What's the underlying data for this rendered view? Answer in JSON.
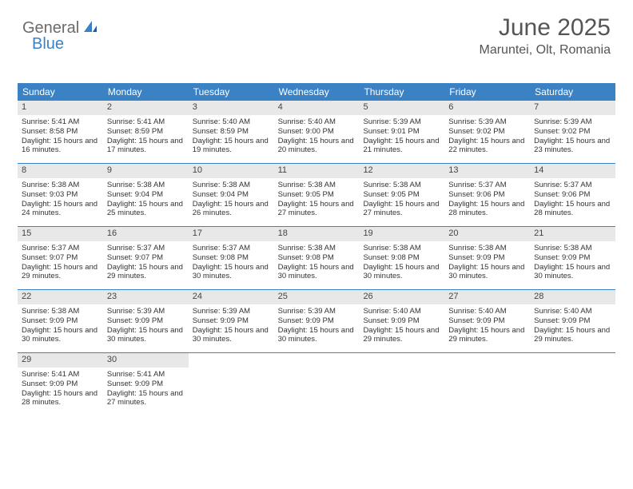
{
  "logo": {
    "text1": "General",
    "text2": "Blue"
  },
  "header": {
    "title": "June 2025",
    "location": "Maruntei, Olt, Romania"
  },
  "colors": {
    "header_bg": "#3b82c4",
    "header_text": "#ffffff",
    "daynum_bg": "#e8e8e8",
    "border": "#3b82c4",
    "body_text": "#333333",
    "logo_gray": "#6b6b6b",
    "logo_blue": "#3b82c4"
  },
  "calendar": {
    "day_names": [
      "Sunday",
      "Monday",
      "Tuesday",
      "Wednesday",
      "Thursday",
      "Friday",
      "Saturday"
    ],
    "weeks": [
      [
        {
          "n": "1",
          "sunrise": "5:41 AM",
          "sunset": "8:58 PM",
          "daylight": "15 hours and 16 minutes."
        },
        {
          "n": "2",
          "sunrise": "5:41 AM",
          "sunset": "8:59 PM",
          "daylight": "15 hours and 17 minutes."
        },
        {
          "n": "3",
          "sunrise": "5:40 AM",
          "sunset": "8:59 PM",
          "daylight": "15 hours and 19 minutes."
        },
        {
          "n": "4",
          "sunrise": "5:40 AM",
          "sunset": "9:00 PM",
          "daylight": "15 hours and 20 minutes."
        },
        {
          "n": "5",
          "sunrise": "5:39 AM",
          "sunset": "9:01 PM",
          "daylight": "15 hours and 21 minutes."
        },
        {
          "n": "6",
          "sunrise": "5:39 AM",
          "sunset": "9:02 PM",
          "daylight": "15 hours and 22 minutes."
        },
        {
          "n": "7",
          "sunrise": "5:39 AM",
          "sunset": "9:02 PM",
          "daylight": "15 hours and 23 minutes."
        }
      ],
      [
        {
          "n": "8",
          "sunrise": "5:38 AM",
          "sunset": "9:03 PM",
          "daylight": "15 hours and 24 minutes."
        },
        {
          "n": "9",
          "sunrise": "5:38 AM",
          "sunset": "9:04 PM",
          "daylight": "15 hours and 25 minutes."
        },
        {
          "n": "10",
          "sunrise": "5:38 AM",
          "sunset": "9:04 PM",
          "daylight": "15 hours and 26 minutes."
        },
        {
          "n": "11",
          "sunrise": "5:38 AM",
          "sunset": "9:05 PM",
          "daylight": "15 hours and 27 minutes."
        },
        {
          "n": "12",
          "sunrise": "5:38 AM",
          "sunset": "9:05 PM",
          "daylight": "15 hours and 27 minutes."
        },
        {
          "n": "13",
          "sunrise": "5:37 AM",
          "sunset": "9:06 PM",
          "daylight": "15 hours and 28 minutes."
        },
        {
          "n": "14",
          "sunrise": "5:37 AM",
          "sunset": "9:06 PM",
          "daylight": "15 hours and 28 minutes."
        }
      ],
      [
        {
          "n": "15",
          "sunrise": "5:37 AM",
          "sunset": "9:07 PM",
          "daylight": "15 hours and 29 minutes."
        },
        {
          "n": "16",
          "sunrise": "5:37 AM",
          "sunset": "9:07 PM",
          "daylight": "15 hours and 29 minutes."
        },
        {
          "n": "17",
          "sunrise": "5:37 AM",
          "sunset": "9:08 PM",
          "daylight": "15 hours and 30 minutes."
        },
        {
          "n": "18",
          "sunrise": "5:38 AM",
          "sunset": "9:08 PM",
          "daylight": "15 hours and 30 minutes."
        },
        {
          "n": "19",
          "sunrise": "5:38 AM",
          "sunset": "9:08 PM",
          "daylight": "15 hours and 30 minutes."
        },
        {
          "n": "20",
          "sunrise": "5:38 AM",
          "sunset": "9:09 PM",
          "daylight": "15 hours and 30 minutes."
        },
        {
          "n": "21",
          "sunrise": "5:38 AM",
          "sunset": "9:09 PM",
          "daylight": "15 hours and 30 minutes."
        }
      ],
      [
        {
          "n": "22",
          "sunrise": "5:38 AM",
          "sunset": "9:09 PM",
          "daylight": "15 hours and 30 minutes."
        },
        {
          "n": "23",
          "sunrise": "5:39 AM",
          "sunset": "9:09 PM",
          "daylight": "15 hours and 30 minutes."
        },
        {
          "n": "24",
          "sunrise": "5:39 AM",
          "sunset": "9:09 PM",
          "daylight": "15 hours and 30 minutes."
        },
        {
          "n": "25",
          "sunrise": "5:39 AM",
          "sunset": "9:09 PM",
          "daylight": "15 hours and 30 minutes."
        },
        {
          "n": "26",
          "sunrise": "5:40 AM",
          "sunset": "9:09 PM",
          "daylight": "15 hours and 29 minutes."
        },
        {
          "n": "27",
          "sunrise": "5:40 AM",
          "sunset": "9:09 PM",
          "daylight": "15 hours and 29 minutes."
        },
        {
          "n": "28",
          "sunrise": "5:40 AM",
          "sunset": "9:09 PM",
          "daylight": "15 hours and 29 minutes."
        }
      ],
      [
        {
          "n": "29",
          "sunrise": "5:41 AM",
          "sunset": "9:09 PM",
          "daylight": "15 hours and 28 minutes."
        },
        {
          "n": "30",
          "sunrise": "5:41 AM",
          "sunset": "9:09 PM",
          "daylight": "15 hours and 27 minutes."
        },
        null,
        null,
        null,
        null,
        null
      ]
    ]
  },
  "labels": {
    "sunrise": "Sunrise:",
    "sunset": "Sunset:",
    "daylight": "Daylight:"
  }
}
